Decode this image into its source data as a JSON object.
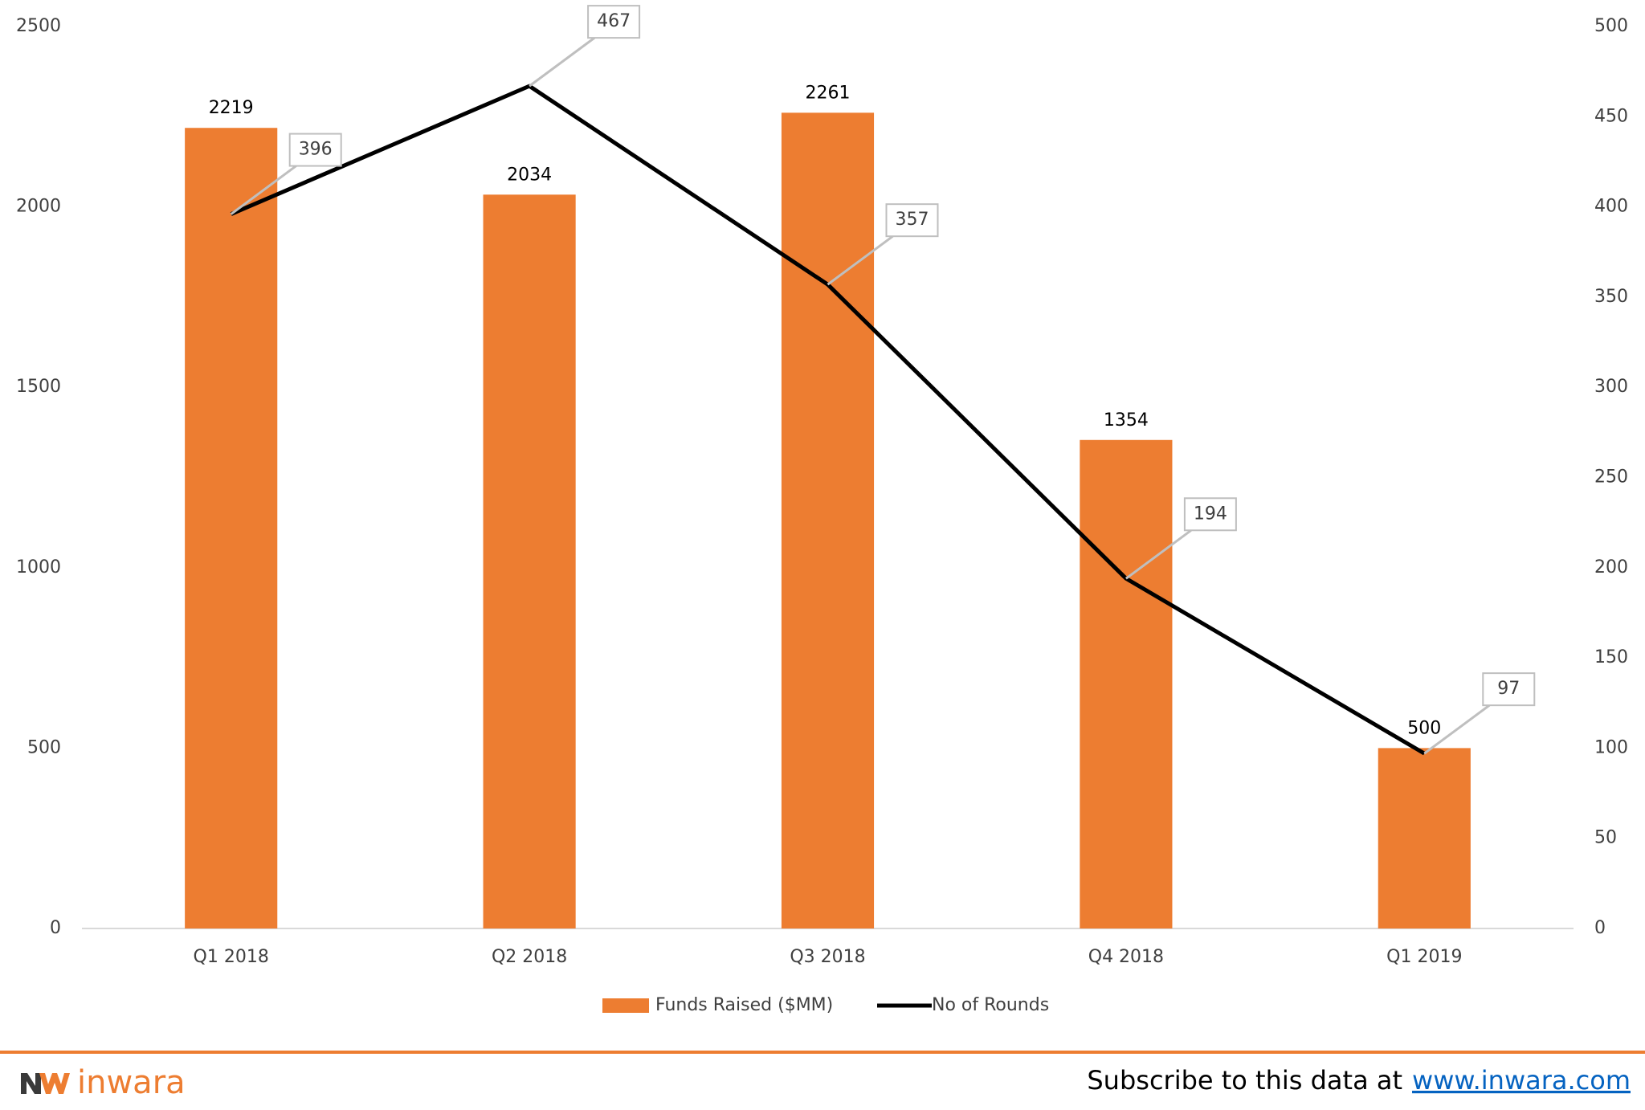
{
  "chart_data": {
    "type": "bar_line",
    "categories": [
      "Q1 2018",
      "Q2 2018",
      "Q3 2018",
      "Q4 2018",
      "Q1 2019"
    ],
    "series": [
      {
        "name": "Funds Raised ($MM)",
        "color": "#ed7d31",
        "type": "bar",
        "values": [
          2219,
          2034,
          2261,
          1354,
          500
        ]
      },
      {
        "name": "No of Rounds",
        "color": "#000000",
        "type": "line",
        "axis": "y2",
        "values": [
          396,
          467,
          357,
          194,
          97
        ]
      }
    ],
    "ylim": [
      0,
      2500
    ],
    "yticks": [
      0,
      500,
      1000,
      1500,
      2000,
      2500
    ],
    "y2lim": [
      0,
      500
    ],
    "y2ticks": [
      0,
      50,
      100,
      150,
      200,
      250,
      300,
      350,
      400,
      450,
      500
    ],
    "legend": "bottom"
  },
  "footer": {
    "brand": "inwara",
    "text": "Subscribe to this data at",
    "link": "www.inwara.com"
  }
}
